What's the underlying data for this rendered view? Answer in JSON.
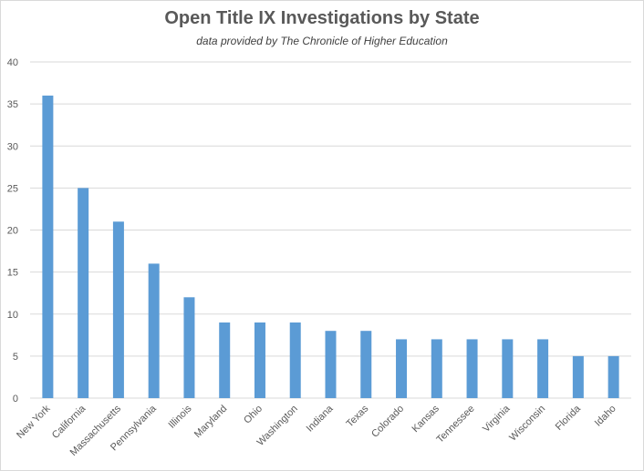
{
  "chart_data": {
    "type": "bar",
    "title": "Open Title IX Investigations by State",
    "subtitle": "data provided by The Chronicle of Higher Education",
    "xlabel": "",
    "ylabel": "",
    "ylim": [
      0,
      40
    ],
    "yticks": [
      0,
      5,
      10,
      15,
      20,
      25,
      30,
      35,
      40
    ],
    "grid": true,
    "legend": "none",
    "bar_color": "#5b9bd5",
    "categories": [
      "New York",
      "California",
      "Massachusetts",
      "Pennsylvania",
      "Illinois",
      "Maryland",
      "Ohio",
      "Washington",
      "Indiana",
      "Texas",
      "Colorado",
      "Kansas",
      "Tennessee",
      "Virginia",
      "Wisconsin",
      "Florida",
      "Idaho"
    ],
    "values": [
      36,
      25,
      21,
      16,
      12,
      9,
      9,
      9,
      8,
      8,
      7,
      7,
      7,
      7,
      7,
      5,
      5
    ]
  }
}
